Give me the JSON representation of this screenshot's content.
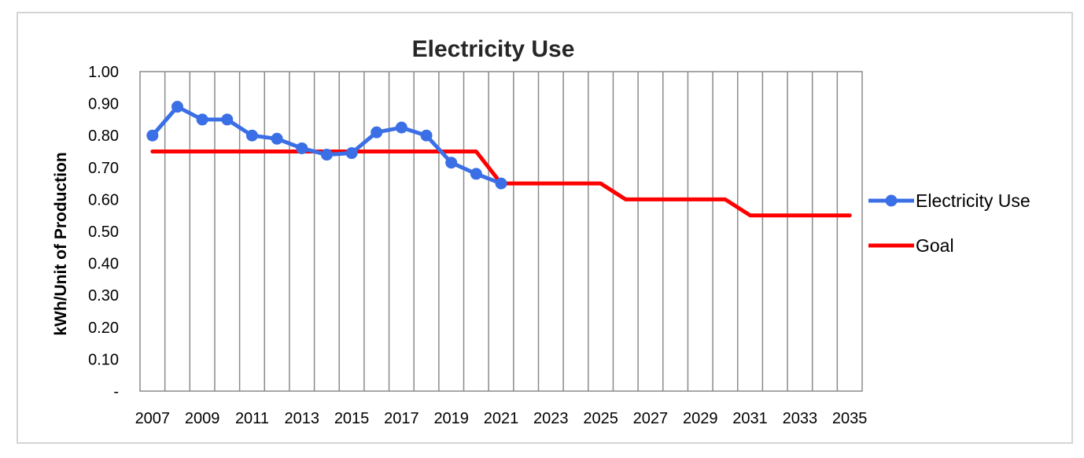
{
  "chart_data": {
    "type": "line",
    "title": "Electricity Use",
    "xlabel": "",
    "ylabel": "kWh/Unit of Production",
    "x": [
      2007,
      2008,
      2009,
      2010,
      2011,
      2012,
      2013,
      2014,
      2015,
      2016,
      2017,
      2018,
      2019,
      2020,
      2021,
      2022,
      2023,
      2024,
      2025,
      2026,
      2027,
      2028,
      2029,
      2030,
      2031,
      2032,
      2033,
      2034,
      2035
    ],
    "xlim": [
      2006.5,
      2035.5
    ],
    "ylim": [
      0,
      1
    ],
    "y_ticks": [
      {
        "value": 0,
        "label": "-"
      },
      {
        "value": 0.1,
        "label": "0.10"
      },
      {
        "value": 0.2,
        "label": "0.20"
      },
      {
        "value": 0.3,
        "label": "0.30"
      },
      {
        "value": 0.4,
        "label": "0.40"
      },
      {
        "value": 0.5,
        "label": "0.50"
      },
      {
        "value": 0.6,
        "label": "0.60"
      },
      {
        "value": 0.7,
        "label": "0.70"
      },
      {
        "value": 0.8,
        "label": "0.80"
      },
      {
        "value": 0.9,
        "label": "0.90"
      },
      {
        "value": 1.0,
        "label": "1.00"
      }
    ],
    "x_tick_labels": [
      "2007",
      "2009",
      "2011",
      "2013",
      "2015",
      "2017",
      "2019",
      "2021",
      "2023",
      "2025",
      "2027",
      "2029",
      "2031",
      "2033",
      "2035"
    ],
    "grid": {
      "vertical": true,
      "horizontal": false
    },
    "legend_position": "right",
    "series": [
      {
        "name": "Electricity Use",
        "color": "#3b6fe6",
        "marker": "circle",
        "x": [
          2007,
          2008,
          2009,
          2010,
          2011,
          2012,
          2013,
          2014,
          2015,
          2016,
          2017,
          2018,
          2019,
          2020,
          2021
        ],
        "values": [
          0.8,
          0.89,
          0.85,
          0.85,
          0.8,
          0.79,
          0.76,
          0.74,
          0.745,
          0.81,
          0.825,
          0.8,
          0.715,
          0.68,
          0.65
        ]
      },
      {
        "name": "Goal",
        "color": "#ff0000",
        "marker": "none",
        "x": [
          2007,
          2008,
          2009,
          2010,
          2011,
          2012,
          2013,
          2014,
          2015,
          2016,
          2017,
          2018,
          2019,
          2020,
          2021,
          2022,
          2023,
          2024,
          2025,
          2026,
          2027,
          2028,
          2029,
          2030,
          2031,
          2032,
          2033,
          2034,
          2035
        ],
        "values": [
          0.75,
          0.75,
          0.75,
          0.75,
          0.75,
          0.75,
          0.75,
          0.75,
          0.75,
          0.75,
          0.75,
          0.75,
          0.75,
          0.75,
          0.65,
          0.65,
          0.65,
          0.65,
          0.65,
          0.6,
          0.6,
          0.6,
          0.6,
          0.6,
          0.55,
          0.55,
          0.55,
          0.55,
          0.55
        ]
      }
    ]
  }
}
